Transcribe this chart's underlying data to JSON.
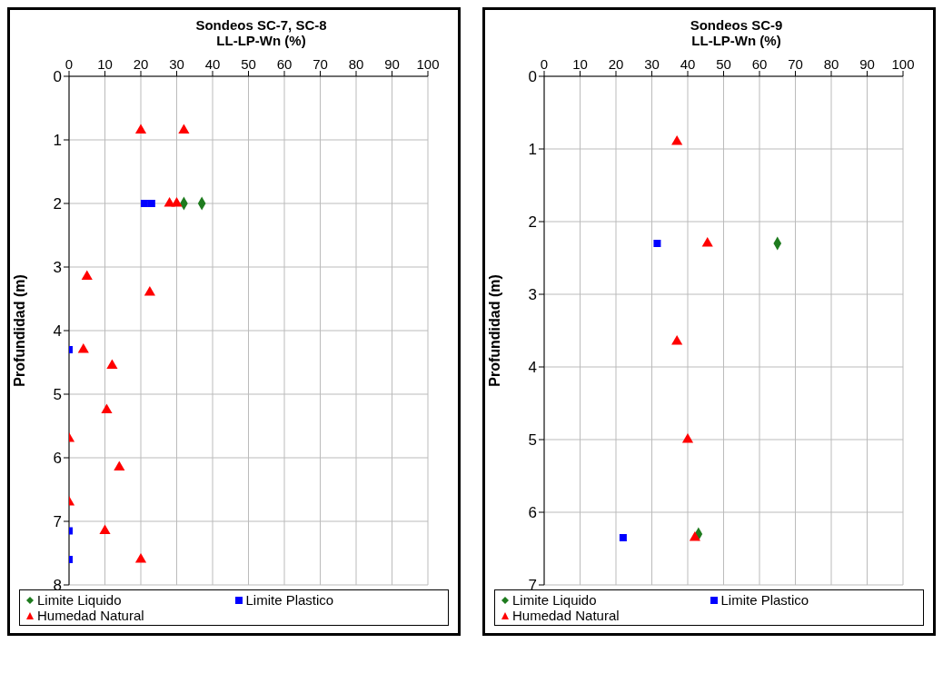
{
  "chart_data": [
    {
      "type": "scatter",
      "title": "Sondeos SC-7, SC-8",
      "xlabel": "LL-LP-Wn (%)",
      "ylabel": "Profundidad (m)",
      "xlim": [
        0,
        100
      ],
      "xticks": [
        0,
        10,
        20,
        30,
        40,
        50,
        60,
        70,
        80,
        90,
        100
      ],
      "ylim": [
        8,
        0
      ],
      "yticks": [
        0,
        1,
        2,
        3,
        4,
        5,
        6,
        7,
        8
      ],
      "grid": true,
      "legend": "bottom",
      "series": [
        {
          "name": "Limite Liquido",
          "color": "#1e7b1e",
          "marker": "diamond",
          "x": [
            32,
            37
          ],
          "values": [
            2,
            2
          ]
        },
        {
          "name": "Limite Plastico",
          "color": "#0000ff",
          "marker": "square",
          "x": [
            21,
            23,
            0,
            0,
            0
          ],
          "values": [
            2,
            2,
            4.3,
            7.15,
            7.6
          ]
        },
        {
          "name": "Humedad Natural",
          "color": "#ff0000",
          "marker": "triangle",
          "x": [
            20,
            32,
            28,
            30,
            5,
            22.5,
            4,
            12,
            10.5,
            0,
            14,
            0,
            10,
            20
          ],
          "values": [
            0.85,
            0.85,
            2,
            2,
            3.15,
            3.4,
            4.3,
            4.55,
            5.25,
            5.7,
            6.15,
            6.7,
            7.15,
            7.6
          ]
        }
      ]
    },
    {
      "type": "scatter",
      "title": "Sondeos SC-9",
      "xlabel": "LL-LP-Wn (%)",
      "ylabel": "Profundidad (m)",
      "xlim": [
        0,
        100
      ],
      "xticks": [
        0,
        10,
        20,
        30,
        40,
        50,
        60,
        70,
        80,
        90,
        100
      ],
      "ylim": [
        7,
        0
      ],
      "yticks": [
        0,
        1,
        2,
        3,
        4,
        5,
        6,
        7
      ],
      "grid": true,
      "legend": "bottom",
      "series": [
        {
          "name": "Limite Liquido",
          "color": "#1e7b1e",
          "marker": "diamond",
          "x": [
            65,
            43
          ],
          "values": [
            2.3,
            6.3
          ]
        },
        {
          "name": "Limite Plastico",
          "color": "#0000ff",
          "marker": "square",
          "x": [
            31.5,
            22
          ],
          "values": [
            2.3,
            6.35
          ]
        },
        {
          "name": "Humedad Natural",
          "color": "#ff0000",
          "marker": "triangle",
          "x": [
            37,
            45.5,
            37,
            40,
            42
          ],
          "values": [
            0.9,
            2.3,
            3.65,
            5,
            6.35
          ]
        }
      ]
    }
  ]
}
